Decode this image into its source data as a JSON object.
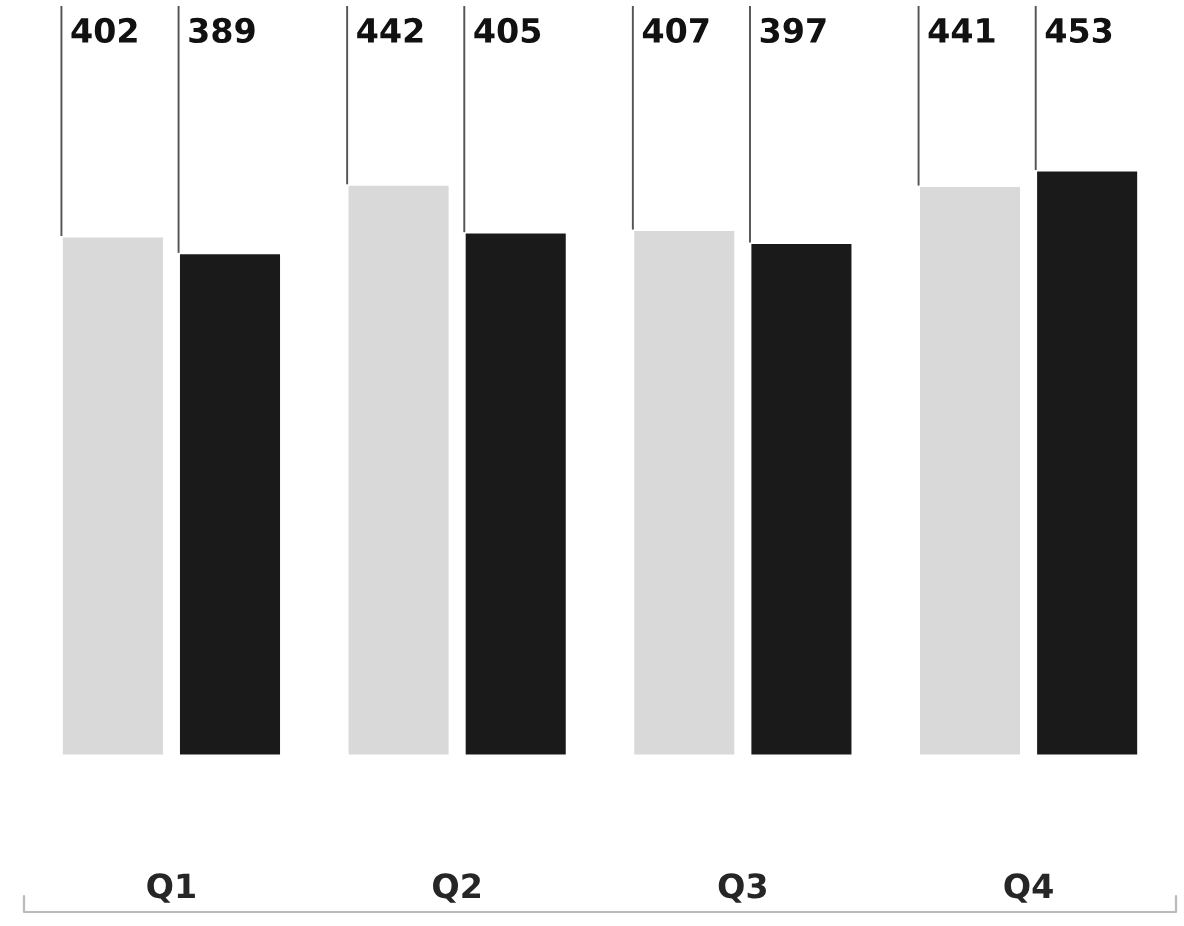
{
  "chart_data": {
    "type": "bar",
    "categories": [
      "Q1",
      "Q2",
      "Q3",
      "Q4"
    ],
    "series": [
      {
        "color": "#d9d9d9",
        "values": [
          402,
          442,
          407,
          441
        ],
        "value_labels": [
          "402",
          "442",
          "407",
          "441"
        ]
      },
      {
        "color": "#1a1a1a",
        "values": [
          389,
          405,
          397,
          453
        ],
        "value_labels": [
          "389",
          "405",
          "397",
          "453"
        ]
      }
    ],
    "grid": false,
    "legend": false
  }
}
